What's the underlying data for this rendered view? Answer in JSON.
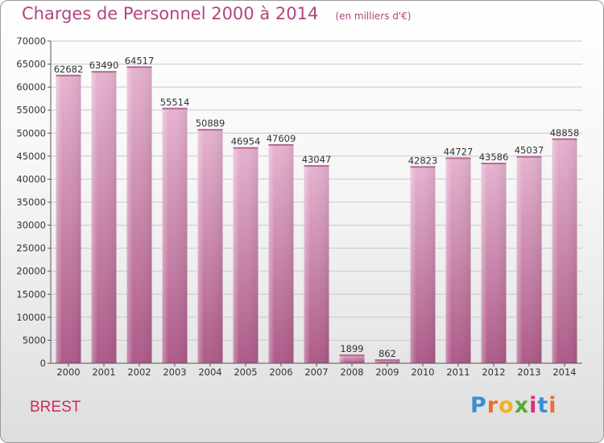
{
  "page": {
    "commune": "BREST",
    "logo": {
      "text": "Proxiti",
      "letters": [
        "P",
        "r",
        "o",
        "x",
        "i",
        "t",
        "i"
      ],
      "colors": [
        "#3a8fd2",
        "#e8702a",
        "#f0b21c",
        "#5aa832",
        "#d92d7a",
        "#3a8fd2",
        "#e8702a"
      ]
    },
    "colors": {
      "bar": "#d088b0",
      "bar_light": "#e6b3d0",
      "bar_dark": "#ad5a88",
      "title": "#b2457e",
      "commune": "#d02a58"
    }
  },
  "chart_data": {
    "type": "bar",
    "title": "Charges de Personnel 2000 à 2014",
    "subtitle": "(en milliers d'€)",
    "categories": [
      "2000",
      "2001",
      "2002",
      "2003",
      "2004",
      "2005",
      "2006",
      "2007",
      "2008",
      "2009",
      "2010",
      "2011",
      "2012",
      "2013",
      "2014"
    ],
    "values": [
      62682,
      63490,
      64517,
      55514,
      50889,
      46954,
      47609,
      43047,
      1899,
      862,
      42823,
      44727,
      43586,
      45037,
      48858
    ],
    "ylim": [
      0,
      70000
    ],
    "yticks": [
      0,
      5000,
      10000,
      15000,
      20000,
      25000,
      30000,
      35000,
      40000,
      45000,
      50000,
      55000,
      60000,
      65000,
      70000
    ],
    "grid": true
  }
}
